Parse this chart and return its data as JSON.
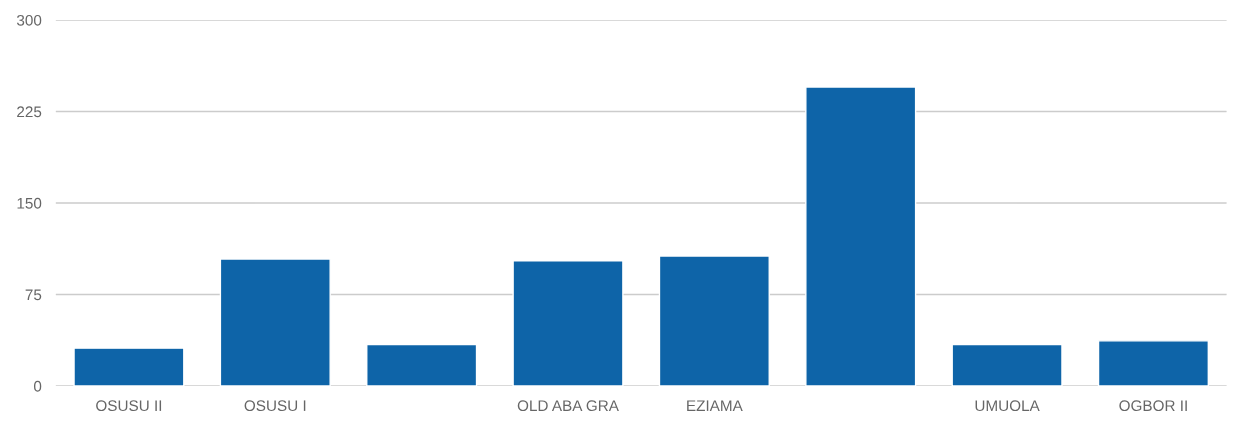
{
  "chart_data": {
    "type": "bar",
    "categories": [
      "OSUSU II",
      "OSUSU I",
      null,
      "OLD ABA GRA",
      "EZIAMA",
      null,
      "UMUOLA",
      "OGBOR II"
    ],
    "values": [
      31,
      104,
      34,
      102.5,
      106.5,
      245,
      34,
      37
    ],
    "color": "#0e64a8",
    "ylim": [
      0,
      300
    ],
    "yticks": [
      0,
      75,
      150,
      225,
      300
    ],
    "grid": "y"
  }
}
